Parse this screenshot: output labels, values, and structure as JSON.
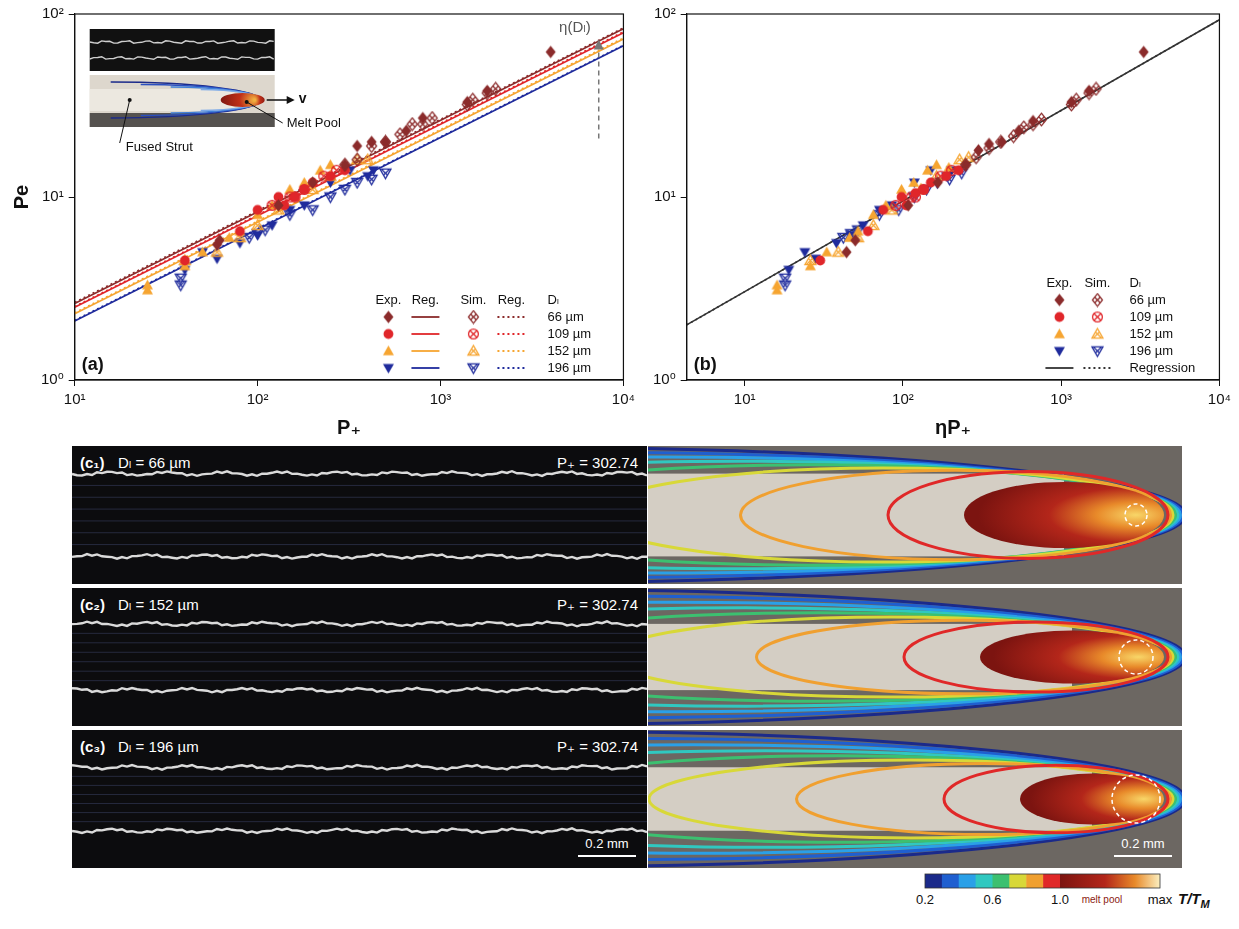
{
  "chart_data": [
    {
      "type": "scatter",
      "panel_label": "(a)",
      "x_label": "P₊",
      "y_label": "Pe",
      "log": true,
      "grid": false,
      "xlim": [
        10,
        10000
      ],
      "ylim": [
        1,
        100
      ],
      "xticks": [
        {
          "value": 10,
          "label": "10¹"
        },
        {
          "value": 100,
          "label": "10²"
        },
        {
          "value": 1000,
          "label": "10³"
        },
        {
          "value": 10000,
          "label": "10⁴"
        }
      ],
      "yticks": [
        {
          "value": 1,
          "label": "10⁰"
        },
        {
          "value": 10,
          "label": "10¹"
        },
        {
          "value": 100,
          "label": "10²"
        }
      ],
      "legend": "bottom-right",
      "legend_headers": [
        "Exp.",
        "Reg.",
        "Sim.",
        "Reg.",
        "Dₗ"
      ],
      "annotation": "η(Dₗ)",
      "inset_labels": {
        "melt_pool": "Melt Pool",
        "strut": "Fused Strut",
        "velocity": "v"
      },
      "series": [
        {
          "name": "66 µm",
          "color": "#8b2b2b",
          "exp": {
            "marker": "diamond",
            "x": [
              60,
              62,
              130,
              200,
              300,
              350,
              420,
              500,
              650,
              800,
              1400,
              1800,
              4000
            ],
            "values": [
              5.5,
              5.8,
              9,
              12,
              15,
              19,
              20,
              20,
              23,
              27,
              33,
              38,
              62
            ]
          },
          "sim": {
            "marker": "crossed_diamond",
            "x": [
              300,
              350,
              420,
              500,
              600,
              700,
              800,
              900,
              1400,
              1500,
              1800,
              2000
            ],
            "values": [
              15,
              16,
              19,
              20,
              22,
              25,
              25,
              27,
              32,
              34,
              37,
              39
            ]
          },
          "exp_reg": {
            "line_style": "solid",
            "x": [
              10,
              10000
            ],
            "values": [
              2.62,
              83
            ]
          },
          "sim_reg": {
            "line_style": "dotted",
            "x": [
              10,
              10000
            ],
            "values": [
              2.66,
              84
            ]
          }
        },
        {
          "name": "109 µm",
          "color": "#e0262a",
          "exp": {
            "marker": "circle",
            "x": [
              40,
              80,
              100,
              130,
              140,
              160,
              180,
              200,
              250,
              300
            ],
            "values": [
              4.5,
              6.5,
              8.5,
              10,
              9,
              10,
              11,
              12,
              13,
              14
            ]
          },
          "sim": {
            "marker": "crossed_circle",
            "x": [
              120,
              150,
              160,
              180,
              230,
              270
            ],
            "values": [
              9,
              10,
              10,
              11,
              13,
              14
            ]
          },
          "exp_reg": {
            "line_style": "solid",
            "x": [
              10,
              10000
            ],
            "values": [
              2.5,
              79
            ]
          },
          "sim_reg": {
            "line_style": "dotted",
            "x": [
              10,
              10000
            ],
            "values": [
              2.52,
              80
            ]
          }
        },
        {
          "name": "152 µm",
          "color": "#f6a531",
          "exp": {
            "marker": "triangle",
            "x": [
              25,
              25,
              40,
              50,
              70,
              80,
              100,
              120,
              150,
              180,
              220,
              250,
              300
            ],
            "values": [
              3.1,
              3.3,
              4.2,
              5,
              6,
              6.5,
              8,
              9,
              11,
              12,
              14,
              15,
              14.5
            ]
          },
          "sim": {
            "marker": "crossed_triangle",
            "x": [
              40,
              60,
              80,
              100,
              130,
              200,
              250,
              350,
              400
            ],
            "values": [
              4.5,
              5,
              6,
              7,
              8.5,
              11,
              13,
              16,
              16
            ]
          },
          "exp_reg": {
            "line_style": "solid",
            "x": [
              10,
              10000
            ],
            "values": [
              2.3,
              73
            ]
          },
          "sim_reg": {
            "line_style": "dotted",
            "x": [
              10,
              10000
            ],
            "values": [
              2.33,
              74
            ]
          }
        },
        {
          "name": "196 µm",
          "color": "#1f2b9c",
          "exp": {
            "marker": "triangle_down",
            "x": [
              40,
              50,
              60,
              80,
              100,
              120,
              150,
              180,
              250,
              320,
              400,
              430
            ],
            "values": [
              4,
              5,
              4.6,
              5.6,
              6.2,
              7,
              8.5,
              9,
              12,
              14,
              13,
              14
            ]
          },
          "sim": {
            "marker": "crossed_triangle_down",
            "x": [
              38,
              38,
              90,
              100,
              110,
              150,
              200,
              250,
              300,
              350,
              420,
              500
            ],
            "values": [
              3.3,
              3.6,
              6,
              6.3,
              6.6,
              8,
              8.5,
              10,
              11,
              12,
              12.5,
              13.5
            ]
          },
          "exp_reg": {
            "line_style": "solid",
            "x": [
              10,
              10000
            ],
            "values": [
              2.1,
              67
            ]
          },
          "sim_reg": {
            "line_style": "dotted",
            "x": [
              10,
              10000
            ],
            "values": [
              2.12,
              67.5
            ]
          }
        }
      ]
    },
    {
      "type": "scatter",
      "panel_label": "(b)",
      "x_label": "ηP₊",
      "log": true,
      "grid": false,
      "xlim": [
        4.3,
        10000
      ],
      "ylim": [
        1,
        100
      ],
      "xticks": [
        {
          "value": 10,
          "label": "10¹"
        },
        {
          "value": 100,
          "label": "10²"
        },
        {
          "value": 1000,
          "label": "10³"
        },
        {
          "value": 10000,
          "label": "10⁴"
        }
      ],
      "yticks": [
        {
          "value": 1,
          "label": "10⁰"
        },
        {
          "value": 10,
          "label": "10¹"
        },
        {
          "value": 100,
          "label": "10²"
        }
      ],
      "legend": "bottom-right",
      "legend_headers": [
        "Exp.",
        "Sim.",
        "Dₗ"
      ],
      "series": [
        {
          "name": "66 µm",
          "color": "#8b2b2b",
          "exp": {
            "marker": "diamond",
            "x": [
              44,
              50,
              108,
              166,
              249,
              300,
              350,
              420,
              540,
              664,
              1160,
              1500,
              3320
            ],
            "values": [
              5,
              5.8,
              9,
              12,
              15,
              18,
              19.5,
              20,
              23,
              26,
              33,
              38,
              62
            ]
          },
          "sim": {
            "marker": "crossed_diamond",
            "x": [
              249,
              290,
              350,
              415,
              500,
              580,
              664,
              750,
              1160,
              1245,
              1500,
              1660
            ],
            "values": [
              15,
              16.5,
              18.5,
              20,
              21.5,
              24,
              25,
              26.5,
              32,
              34,
              37,
              39
            ]
          }
        },
        {
          "name": "109 µm",
          "color": "#e0262a",
          "exp": {
            "marker": "circle",
            "x": [
              30,
              60,
              75,
              98,
              105,
              120,
              135,
              150,
              188,
              225
            ],
            "values": [
              4.5,
              6.5,
              8.5,
              10,
              9,
              10.5,
              11,
              12,
              13,
              14
            ]
          },
          "sim": {
            "marker": "crossed_circle",
            "x": [
              90,
              113,
              120,
              135,
              173,
              203
            ],
            "values": [
              9,
              10,
              10,
              11,
              13,
              14
            ]
          }
        },
        {
          "name": "152 µm",
          "color": "#f6a531",
          "exp": {
            "marker": "triangle",
            "x": [
              16,
              16,
              26,
              33,
              46,
              52,
              65,
              78,
              98,
              117,
              143,
              163,
              195
            ],
            "values": [
              3.1,
              3.3,
              4.2,
              5,
              6,
              6.5,
              8,
              9,
              11,
              12,
              14,
              15,
              14.5
            ]
          },
          "sim": {
            "marker": "crossed_triangle",
            "x": [
              26,
              39,
              52,
              65,
              85,
              130,
              163,
              228,
              260
            ],
            "values": [
              4.5,
              5,
              6,
              7,
              8.5,
              11,
              13,
              16,
              16.5
            ]
          }
        },
        {
          "name": "196 µm",
          "color": "#1f2b9c",
          "exp": {
            "marker": "triangle_down",
            "x": [
              19,
              24,
              28,
              38,
              47,
              56,
              71,
              85,
              118,
              150,
              188,
              202
            ],
            "values": [
              4,
              5,
              4.6,
              5.6,
              6.2,
              7,
              8.5,
              9,
              12,
              14,
              13,
              14
            ]
          },
          "sim": {
            "marker": "crossed_triangle_down",
            "x": [
              18,
              18,
              42,
              47,
              52,
              71,
              94,
              118,
              141,
              165,
              197,
              235
            ],
            "values": [
              3.3,
              3.6,
              6,
              6.3,
              6.6,
              8,
              8.5,
              10,
              11,
              12,
              12.5,
              13.5
            ]
          }
        }
      ],
      "regression": {
        "name": "Regression",
        "color": "#333333",
        "exp": {
          "line_style": "solid",
          "x": [
            4.3,
            10000
          ],
          "values": [
            2.0,
            93
          ]
        },
        "sim": {
          "line_style": "dotted",
          "x": [
            4.3,
            10000
          ],
          "values": [
            2.0,
            93
          ]
        }
      }
    }
  ],
  "micrographs": [
    {
      "label": "(c₁)",
      "diameter": "Dₗ = 66 µm",
      "power": "P₊ = 302.74"
    },
    {
      "label": "(c₂)",
      "diameter": "Dₗ = 152 µm",
      "power": "P₊ = 302.74"
    },
    {
      "label": "(c₃)",
      "diameter": "Dₗ = 196 µm",
      "power": "P₊ = 302.74",
      "photo_scale_bar": "0.2 mm",
      "sim_scale_bar": "0.2 mm"
    }
  ],
  "colorbar": {
    "range": [
      0.2,
      1.0
    ],
    "ticks": [
      0.2,
      0.6,
      {
        "value": 1.0,
        "label": "1.0"
      }
    ],
    "segment_label": "melt pool",
    "end_label": "max",
    "title": "T/T",
    "title_subscript": "M"
  }
}
